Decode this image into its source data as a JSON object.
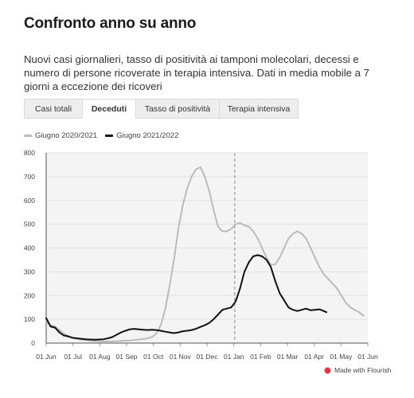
{
  "header": {
    "title": "Confronto anno su anno",
    "subtitle": "Nuovi casi giornalieri, tasso di positività ai tamponi molecolari, decessi e numero di persone ricoverate in terapia intensiva. Dati in media mobile a 7 giorni a eccezione dei ricoveri"
  },
  "tabs": [
    {
      "label": "Casi totali",
      "active": false
    },
    {
      "label": "Deceduti",
      "active": true
    },
    {
      "label": "Tasso di positività",
      "active": false
    },
    {
      "label": "Terapia intensiva",
      "active": false
    }
  ],
  "footer": {
    "credit": "Made with Flourish"
  },
  "chart_data": {
    "type": "line",
    "x_tick_labels": [
      "01 Jun",
      "01 Jul",
      "01 Aug",
      "01 Sep",
      "01 Oct",
      "01 Nov",
      "01 Dec",
      "01 Jan",
      "01 Feb",
      "01 Mar",
      "01 Apr",
      "01 May",
      "01 Jun"
    ],
    "y_ticks": [
      0,
      100,
      200,
      300,
      400,
      500,
      600,
      700,
      800
    ],
    "ylim": [
      0,
      800
    ],
    "grid": true,
    "legend_position": "top-left",
    "x_unit": "days since 01 Jun",
    "xlim": [
      0,
      365
    ],
    "marker_line_x": 214,
    "series": [
      {
        "name": "Giugno 2020/2021",
        "color": "#bbbbbb",
        "x": [
          0,
          5,
          10,
          15,
          20,
          25,
          30,
          35,
          40,
          45,
          50,
          55,
          60,
          65,
          70,
          75,
          80,
          85,
          90,
          95,
          100,
          105,
          110,
          115,
          120,
          125,
          130,
          135,
          140,
          145,
          150,
          155,
          160,
          165,
          170,
          175,
          180,
          185,
          190,
          195,
          200,
          205,
          210,
          215,
          220,
          225,
          230,
          235,
          240,
          245,
          250,
          255,
          260,
          265,
          270,
          275,
          280,
          285,
          290,
          295,
          300,
          305,
          310,
          315,
          320,
          325,
          330,
          335,
          340,
          345,
          350,
          355,
          360
        ],
        "values": [
          90,
          75,
          70,
          55,
          40,
          30,
          22,
          18,
          14,
          12,
          10,
          8,
          8,
          7,
          7,
          7,
          8,
          9,
          10,
          11,
          13,
          15,
          17,
          20,
          25,
          40,
          75,
          140,
          240,
          350,
          480,
          580,
          650,
          700,
          730,
          740,
          700,
          640,
          560,
          490,
          470,
          470,
          480,
          500,
          505,
          495,
          490,
          470,
          440,
          400,
          360,
          330,
          330,
          360,
          400,
          440,
          460,
          470,
          460,
          440,
          400,
          360,
          320,
          290,
          270,
          250,
          230,
          200,
          170,
          150,
          140,
          130,
          115
        ]
      },
      {
        "name": "Giugno 2021/2022",
        "color": "#111111",
        "x": [
          0,
          5,
          10,
          15,
          20,
          25,
          30,
          35,
          40,
          45,
          50,
          55,
          60,
          65,
          70,
          75,
          80,
          85,
          90,
          95,
          100,
          105,
          110,
          115,
          120,
          125,
          130,
          135,
          140,
          145,
          150,
          155,
          160,
          165,
          170,
          175,
          180,
          185,
          190,
          195,
          200,
          205,
          210,
          215,
          220,
          225,
          230,
          235,
          240,
          245,
          250,
          255,
          260,
          265,
          270,
          275,
          280,
          285,
          290,
          295,
          300,
          305,
          310,
          315,
          318
        ],
        "values": [
          105,
          70,
          65,
          45,
          32,
          28,
          22,
          20,
          18,
          16,
          15,
          14,
          15,
          16,
          20,
          25,
          35,
          45,
          52,
          58,
          60,
          58,
          56,
          55,
          56,
          55,
          52,
          48,
          45,
          42,
          45,
          50,
          52,
          55,
          60,
          68,
          75,
          85,
          100,
          120,
          140,
          145,
          150,
          175,
          230,
          300,
          340,
          365,
          370,
          365,
          350,
          320,
          260,
          210,
          180,
          150,
          140,
          135,
          140,
          145,
          138,
          140,
          142,
          135,
          130
        ]
      }
    ]
  }
}
